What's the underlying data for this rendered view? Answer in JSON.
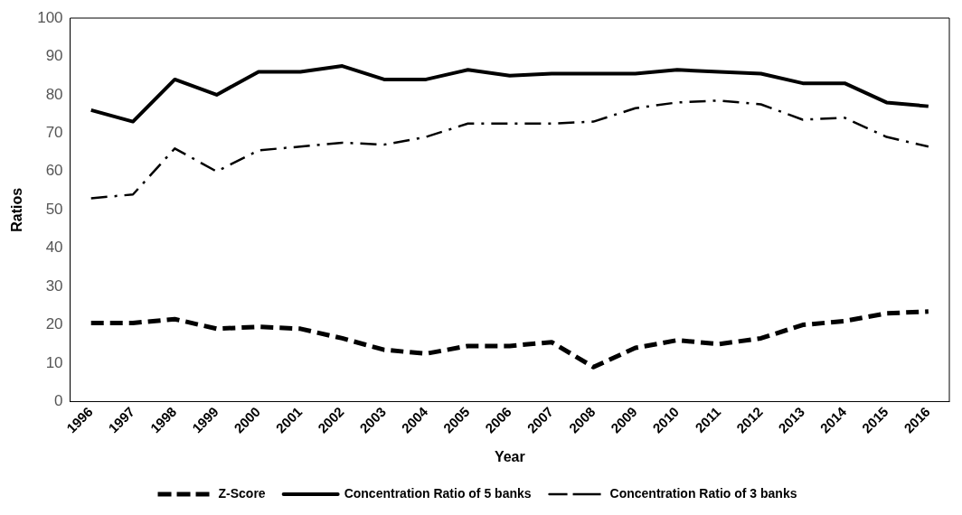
{
  "chart_data": {
    "type": "line",
    "xlabel": "Year",
    "ylabel": "Ratios",
    "categories": [
      "1996",
      "1997",
      "1998",
      "1999",
      "2000",
      "2001",
      "2002",
      "2003",
      "2004",
      "2005",
      "2006",
      "2007",
      "2008",
      "2009",
      "2010",
      "2011",
      "2012",
      "2013",
      "2014",
      "2015",
      "2016"
    ],
    "series": [
      {
        "name": "Z-Score",
        "color": "#000000",
        "line_style": "dashed",
        "values": [
          20.5,
          20.5,
          21.5,
          19,
          19.5,
          19,
          16.5,
          13.5,
          12.5,
          14.5,
          14.5,
          15.5,
          9,
          14,
          16,
          15,
          16.5,
          20,
          21,
          23,
          23.5
        ]
      },
      {
        "name": "Concentration Ratio of 5 banks",
        "color": "#000000",
        "line_style": "solid",
        "values": [
          76,
          73,
          84,
          80,
          86,
          86,
          87.5,
          84,
          84,
          86.5,
          85,
          85.5,
          85.5,
          85.5,
          86.5,
          86,
          85.5,
          83,
          83,
          78,
          77
        ]
      },
      {
        "name": "Concentration Ratio of 3 banks",
        "color": "#000000",
        "line_style": "dashdot",
        "values": [
          53,
          54,
          66,
          60,
          65.5,
          66.5,
          67.5,
          67,
          69,
          72.5,
          72.5,
          72.5,
          73,
          76.5,
          78,
          78.5,
          77.5,
          73.5,
          74,
          69,
          66.5
        ]
      }
    ],
    "ylim": [
      0,
      100
    ],
    "yticks": [
      0,
      10,
      20,
      30,
      40,
      50,
      60,
      70,
      80,
      90,
      100
    ],
    "grid": false,
    "legend": "bottom",
    "marker": "none"
  }
}
